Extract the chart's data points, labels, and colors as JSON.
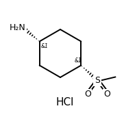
{
  "bg_color": "#ffffff",
  "line_color": "#000000",
  "hcl_label": "HCl",
  "nh2_label": "H₂N",
  "s_label": "S",
  "o_label1": "O",
  "o_label2": "O",
  "stereo_label": "&1",
  "font_size_main": 9,
  "font_size_hcl": 11,
  "font_size_stereo": 5.5,
  "lw": 1.4
}
